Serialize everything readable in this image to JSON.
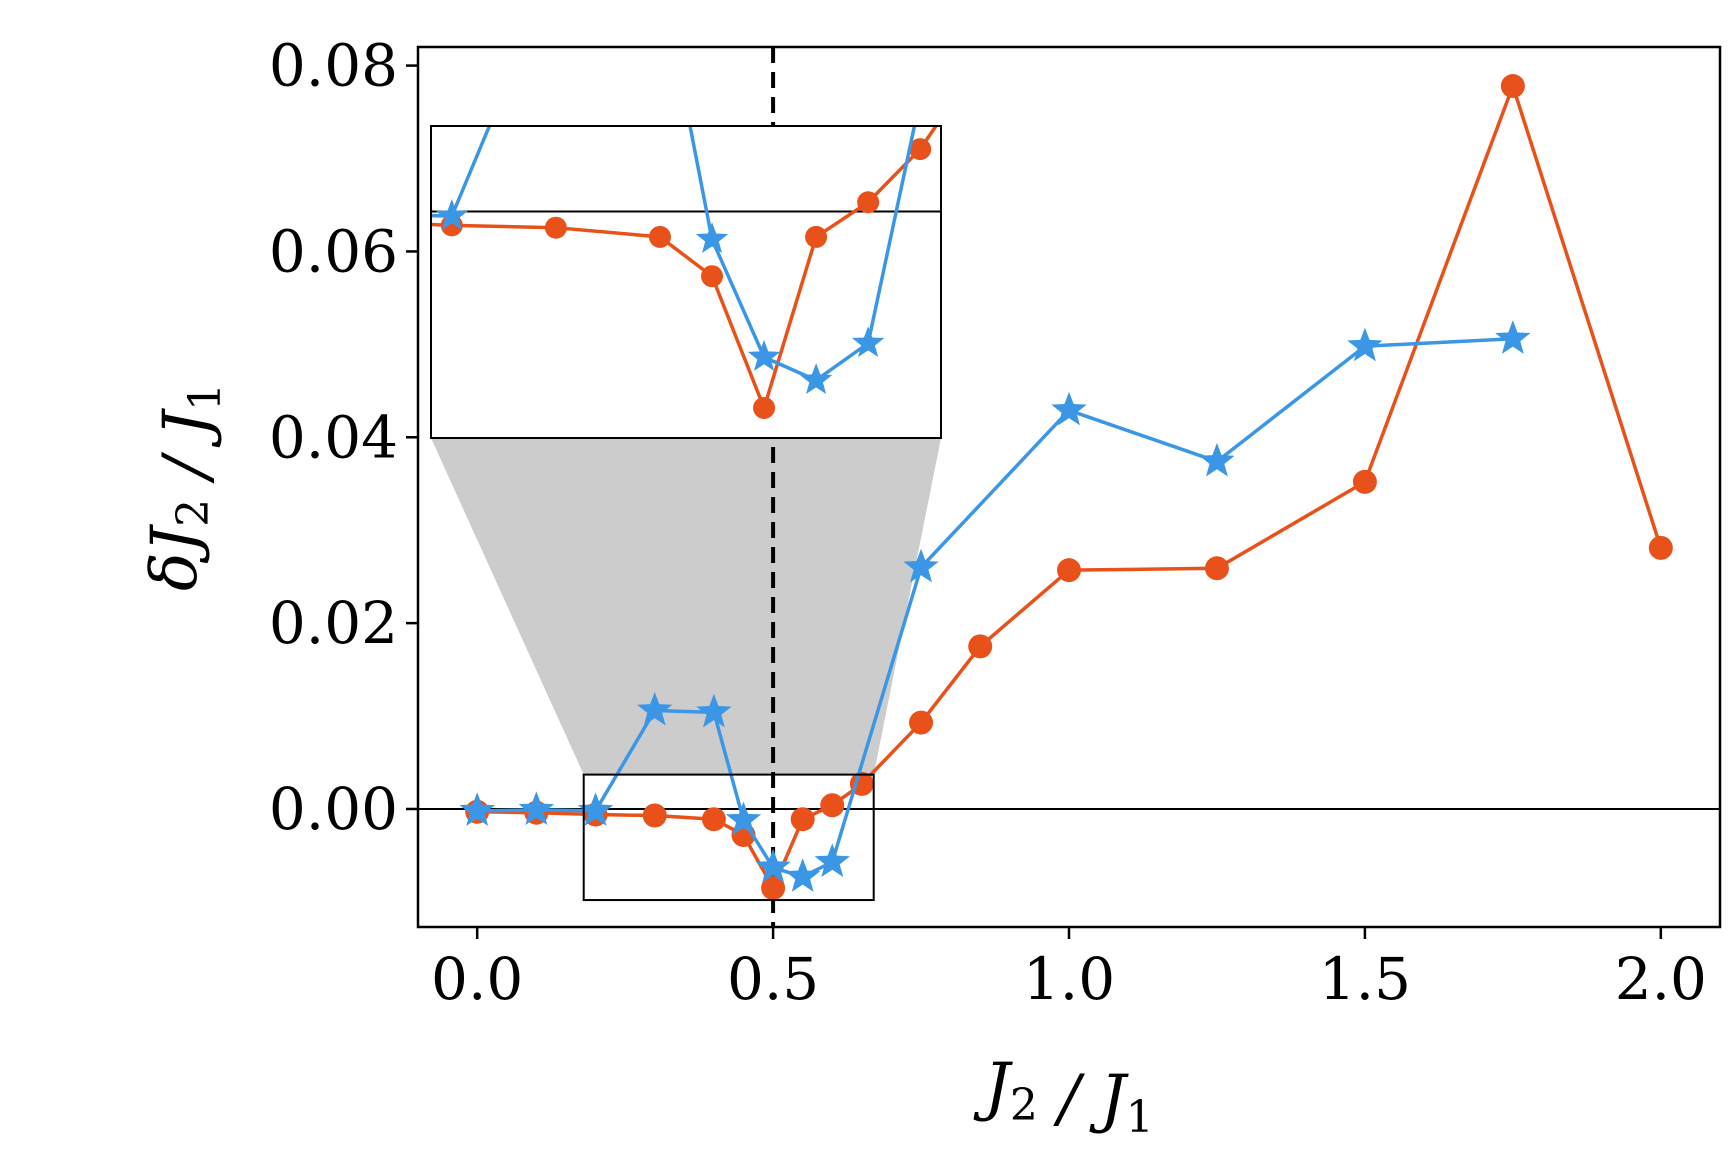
{
  "chart_data": {
    "type": "line",
    "xlabel": "J₂ / J₁",
    "ylabel": "δJ₂ / J₁",
    "xlabel_parts": {
      "main": "J",
      "sub1": "2",
      "slash": "/",
      "main2": "J",
      "sub2": "1"
    },
    "ylabel_parts": {
      "delta": "δ",
      "main": "J",
      "sub1": "2",
      "slash": "/",
      "main2": "J",
      "sub2": "1"
    },
    "xlim": [
      -0.1,
      2.1
    ],
    "ylim": [
      -0.0127,
      0.082
    ],
    "xticks": [
      0.0,
      0.5,
      1.0,
      1.5,
      2.0
    ],
    "xtick_labels": [
      "0.0",
      "0.5",
      "1.0",
      "1.5",
      "2.0"
    ],
    "yticks": [
      0.0,
      0.02,
      0.04,
      0.06,
      0.08
    ],
    "ytick_labels": [
      "0.00",
      "0.02",
      "0.04",
      "0.06",
      "0.08"
    ],
    "reference_lines": {
      "hline_y": 0.0,
      "vline_x": 0.5
    },
    "series": [
      {
        "name": "orange-circles",
        "color": "#e8521a",
        "marker": "circle",
        "x": [
          0.0,
          0.1,
          0.2,
          0.3,
          0.4,
          0.45,
          0.5,
          0.55,
          0.6,
          0.65,
          0.75,
          0.85,
          1.0,
          1.25,
          1.5,
          1.75,
          2.0
        ],
        "y": [
          -0.0003,
          -0.0004,
          -0.0006,
          -0.0007,
          -0.0011,
          -0.0028,
          -0.0085,
          -0.0011,
          0.0004,
          0.0027,
          0.0093,
          0.0175,
          0.0257,
          0.0259,
          0.0352,
          0.0778,
          0.0281
        ]
      },
      {
        "name": "blue-stars",
        "color": "#3b97e6",
        "marker": "star",
        "x": [
          0.0,
          0.1,
          0.2,
          0.3,
          0.4,
          0.45,
          0.5,
          0.55,
          0.6,
          0.75,
          1.0,
          1.25,
          1.5,
          1.75
        ],
        "y": [
          -0.0002,
          -0.0001,
          -0.0002,
          0.0106,
          0.0104,
          -0.0012,
          -0.0063,
          -0.0073,
          -0.0057,
          0.026,
          0.0429,
          0.0374,
          0.0498,
          0.0506
        ]
      }
    ],
    "inset": {
      "source_xlim": [
        0.18,
        0.67
      ],
      "source_ylim": [
        -0.0098,
        0.0037
      ],
      "inset_ylim": [
        -0.0098,
        0.0037
      ],
      "show_hline": true
    }
  }
}
